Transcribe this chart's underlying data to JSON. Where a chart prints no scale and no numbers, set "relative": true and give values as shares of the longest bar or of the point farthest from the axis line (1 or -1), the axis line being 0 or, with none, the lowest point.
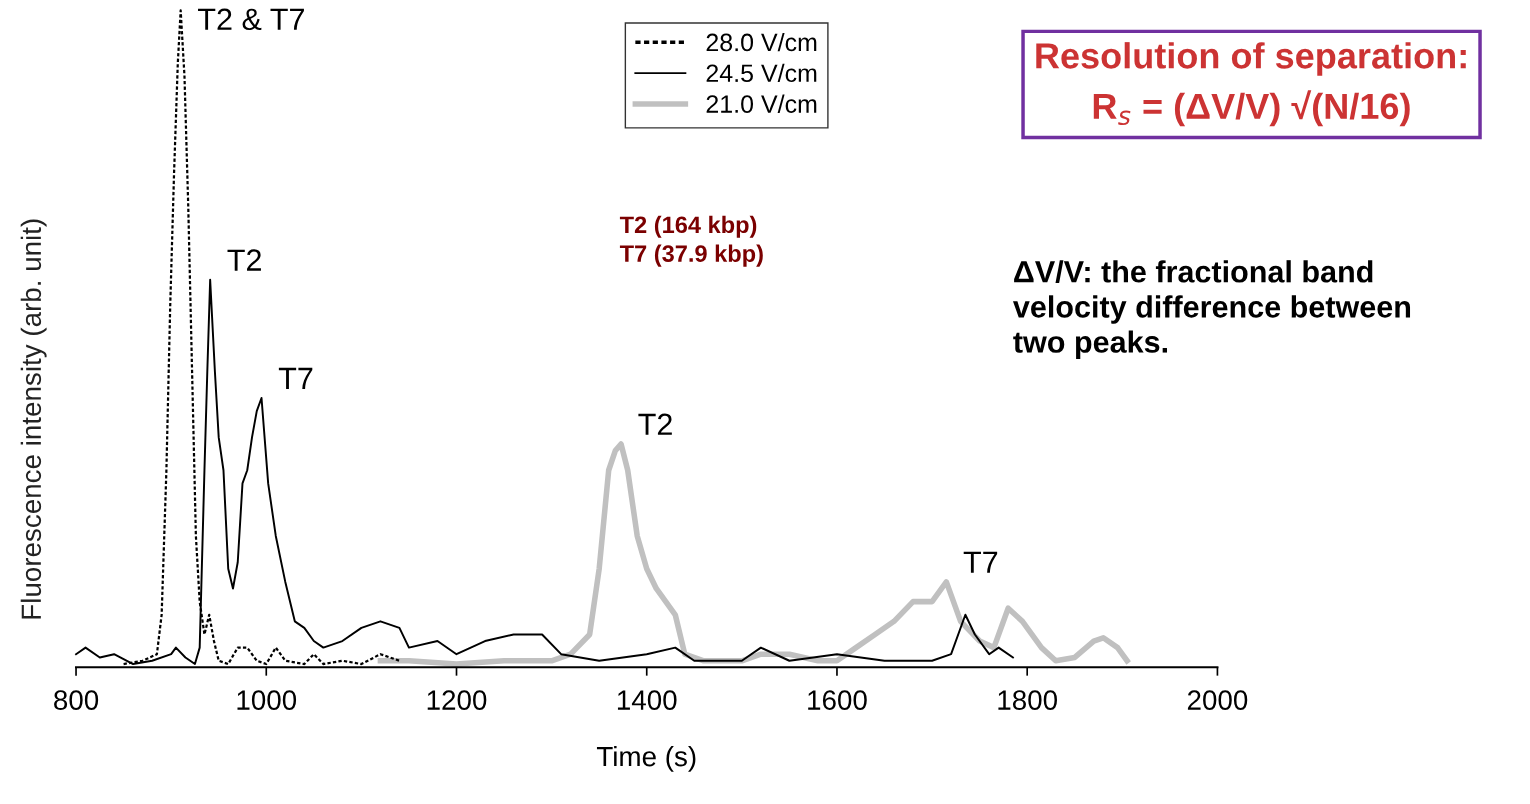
{
  "chart_data": {
    "type": "line",
    "relative": true,
    "xlabel": "Time (s)",
    "ylabel": "Fluorescence intensity (arb. unit)",
    "xlim": [
      800,
      2000
    ],
    "xticks": [
      800,
      1000,
      1200,
      1400,
      1600,
      1800,
      2000
    ],
    "legend": "top",
    "grid": false,
    "marker": "none",
    "series": [
      {
        "name": "28.0 V/cm",
        "color": "#000000",
        "line_style": "dotted",
        "x": [
          850,
          870,
          885,
          890,
          895,
          899,
          903,
          907,
          910,
          914,
          918,
          922,
          926,
          930,
          935,
          940,
          945,
          950,
          960,
          970,
          980,
          990,
          1000,
          1010,
          1020,
          1040,
          1050,
          1060,
          1080,
          1100,
          1120,
          1140
        ],
        "values": [
          0.005,
          0.01,
          0.02,
          0.08,
          0.3,
          0.55,
          0.75,
          0.92,
          1.0,
          0.9,
          0.7,
          0.45,
          0.2,
          0.1,
          0.05,
          0.08,
          0.04,
          0.01,
          0.005,
          0.03,
          0.03,
          0.01,
          0.005,
          0.03,
          0.01,
          0.005,
          0.02,
          0.005,
          0.01,
          0.005,
          0.02,
          0.01
        ]
      },
      {
        "name": "24.5 V/cm",
        "color": "#000000",
        "line_style": "solid",
        "x": [
          800,
          810,
          825,
          840,
          860,
          880,
          900,
          905,
          915,
          925,
          930,
          935,
          938,
          941,
          946,
          950,
          955,
          960,
          965,
          970,
          975,
          980,
          985,
          990,
          995,
          1002,
          1010,
          1020,
          1030,
          1040,
          1050,
          1060,
          1080,
          1100,
          1120,
          1140,
          1150,
          1180,
          1200,
          1230,
          1260,
          1290,
          1310,
          1350,
          1400,
          1430,
          1450,
          1500,
          1520,
          1550,
          1600,
          1650,
          1700,
          1720,
          1735,
          1745,
          1760,
          1770,
          1785
        ],
        "values": [
          0.02,
          0.03,
          0.015,
          0.02,
          0.005,
          0.01,
          0.02,
          0.03,
          0.015,
          0.005,
          0.03,
          0.3,
          0.45,
          0.59,
          0.45,
          0.35,
          0.3,
          0.15,
          0.12,
          0.16,
          0.28,
          0.3,
          0.35,
          0.39,
          0.41,
          0.28,
          0.2,
          0.13,
          0.07,
          0.06,
          0.04,
          0.03,
          0.04,
          0.06,
          0.07,
          0.06,
          0.03,
          0.04,
          0.02,
          0.04,
          0.05,
          0.05,
          0.02,
          0.01,
          0.02,
          0.03,
          0.01,
          0.01,
          0.03,
          0.01,
          0.02,
          0.01,
          0.01,
          0.02,
          0.08,
          0.05,
          0.02,
          0.03,
          0.015
        ]
      },
      {
        "name": "21.0 V/cm",
        "color": "#c0c0c0",
        "line_style": "solid",
        "x": [
          1120,
          1150,
          1200,
          1250,
          1300,
          1320,
          1340,
          1350,
          1360,
          1367,
          1373,
          1380,
          1385,
          1390,
          1400,
          1410,
          1420,
          1430,
          1440,
          1460,
          1500,
          1520,
          1550,
          1580,
          1600,
          1620,
          1640,
          1660,
          1680,
          1700,
          1715,
          1730,
          1750,
          1765,
          1780,
          1795,
          1815,
          1830,
          1850,
          1870,
          1880,
          1895,
          1905
        ],
        "values": [
          0.01,
          0.01,
          0.005,
          0.01,
          0.01,
          0.02,
          0.05,
          0.15,
          0.3,
          0.33,
          0.34,
          0.3,
          0.25,
          0.2,
          0.15,
          0.12,
          0.1,
          0.08,
          0.02,
          0.01,
          0.01,
          0.02,
          0.02,
          0.01,
          0.01,
          0.03,
          0.05,
          0.07,
          0.1,
          0.1,
          0.13,
          0.07,
          0.04,
          0.03,
          0.09,
          0.07,
          0.03,
          0.01,
          0.015,
          0.04,
          0.045,
          0.03,
          0.01
        ]
      }
    ],
    "annotations": [
      {
        "text": "T2 & T7",
        "x": 910,
        "y": 1.0
      },
      {
        "text": "T2",
        "x": 941,
        "y": 0.59
      },
      {
        "text": "T7",
        "x": 995,
        "y": 0.41
      },
      {
        "text": "T2",
        "x": 1373,
        "y": 0.34
      },
      {
        "text": "T7",
        "x": 1715,
        "y": 0.13
      },
      "Resolution of separation:\nR$_{s}$ = (ΔV/V) √(N/16)",
      "T2 (164 kbp)\nT7 (37.9 kbp)",
      "ΔV/V: the fractional band\nvelocity difference between\ntwo peaks."
    ]
  }
}
